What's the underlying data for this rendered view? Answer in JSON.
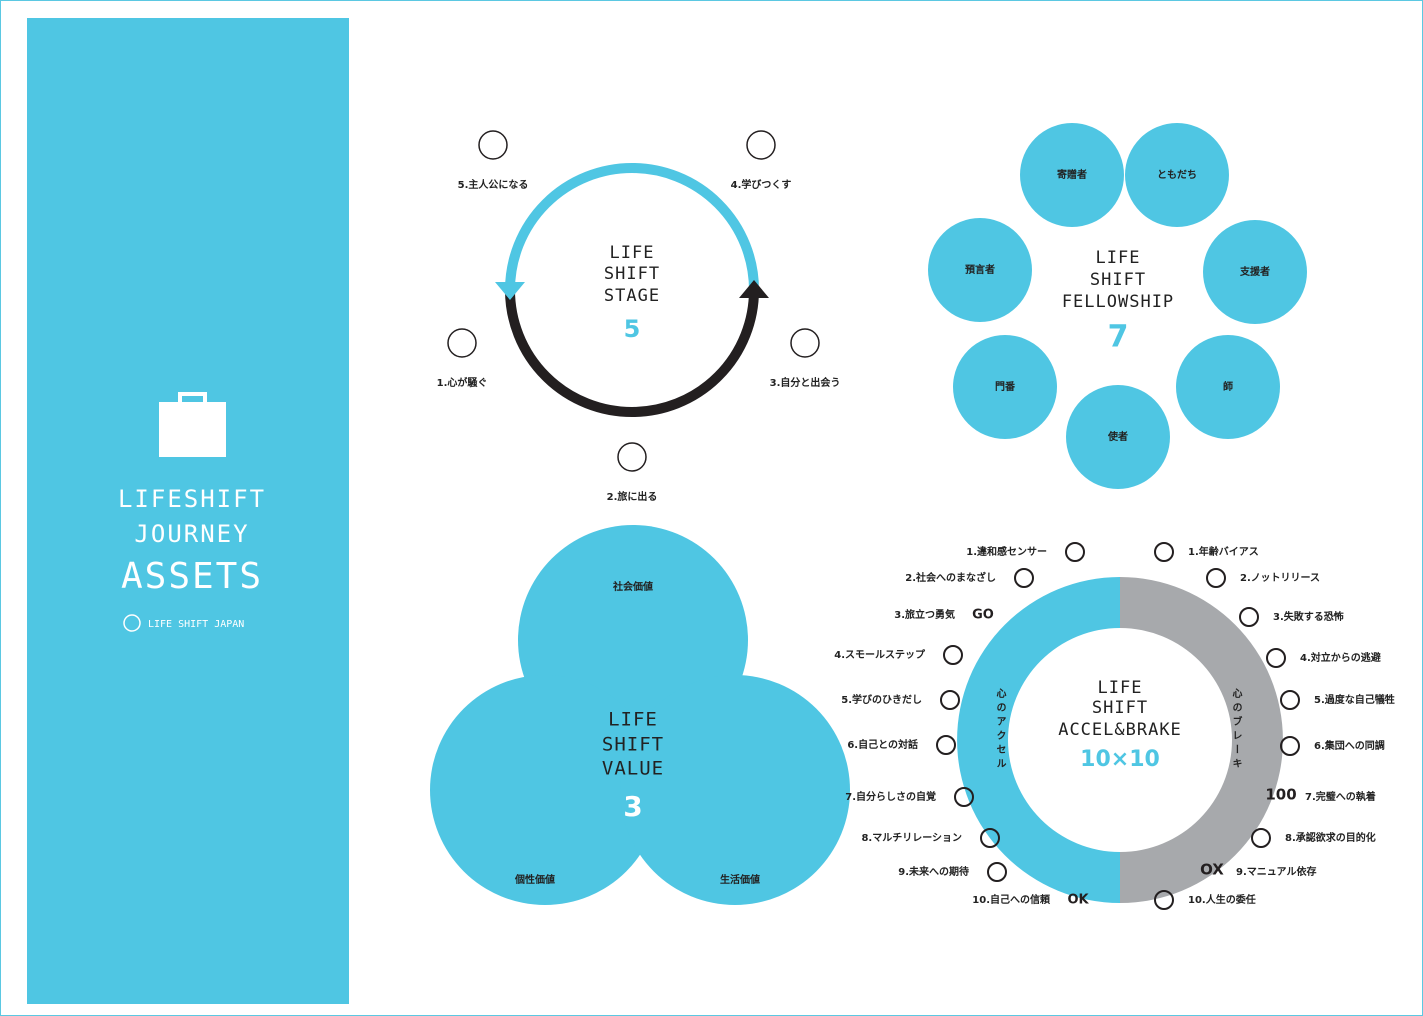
{
  "sidebar": {
    "title_lines": [
      "LIFESHIFT",
      "JOURNEY",
      "ASSETS"
    ],
    "brand": "LIFE SHIFT JAPAN"
  },
  "stage": {
    "title_lines": [
      "LIFE",
      "SHIFT",
      "STAGE"
    ],
    "count": "5",
    "steps": [
      "1.心が騒ぐ",
      "2.旅に出る",
      "3.自分と出会う",
      "4.学びつくす",
      "5.主人公になる"
    ]
  },
  "fellowship": {
    "title_lines": [
      "LIFE",
      "SHIFT",
      "FELLOWSHIP"
    ],
    "count": "7",
    "members": [
      "寄贈者",
      "ともだち",
      "支援者",
      "師",
      "使者",
      "門番",
      "預言者"
    ]
  },
  "value": {
    "title_lines": [
      "LIFE",
      "SHIFT",
      "VALUE"
    ],
    "count": "3",
    "values": [
      "社会価値",
      "個性価値",
      "生活価値"
    ]
  },
  "accel_brake": {
    "title_lines": [
      "LIFE",
      "SHIFT",
      "ACCEL&BRAKE"
    ],
    "count": "10×10",
    "accel_label": "心のアクセル",
    "brake_label": "心のブレーキ",
    "accel": [
      "1.違和感センサー",
      "2.社会へのまなざし",
      "3.旅立つ勇気",
      "4.スモールステップ",
      "5.学びのひきだし",
      "6.自己との対話",
      "7.自分らしさの自覚",
      "8.マルチリレーション",
      "9.未来への期待",
      "10.自己への信頼"
    ],
    "brake": [
      "1.年齢バイアス",
      "2.ノットリリース",
      "3.失敗する恐怖",
      "4.対立からの逃避",
      "5.過度な自己犠牲",
      "6.集団への同調",
      "7.完璧への執着",
      "8.承認欲求の目的化",
      "9.マニュアル依存",
      "10.人生の委任"
    ],
    "icon_texts": {
      "go": "GO",
      "ok": "OK",
      "hundred": "100",
      "ox": "OX"
    }
  }
}
